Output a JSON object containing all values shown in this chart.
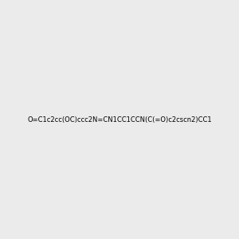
{
  "smiles": "O=C1c2cc(OC)ccc2N=CN1CC1CCN(C(=O)c2cscn2)CC1",
  "image_size": 300,
  "background_color": "#ebebeb",
  "atom_colors": {
    "N": "#0000ff",
    "O": "#ff0000",
    "S": "#cccc00"
  },
  "title": ""
}
